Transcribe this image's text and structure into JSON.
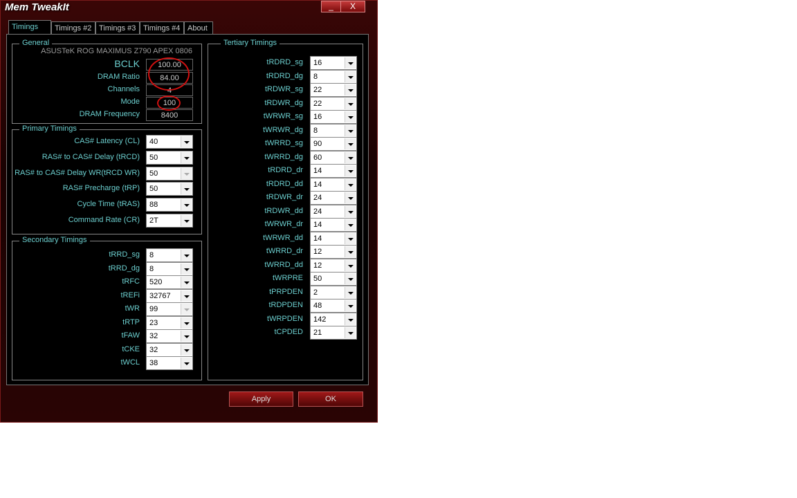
{
  "window": {
    "title": "Mem TweakIt",
    "minimize": "_",
    "close": "X"
  },
  "tabs": [
    "Timings #1",
    "Timings #2",
    "Timings #3",
    "Timings #4",
    "About"
  ],
  "general": {
    "title": "General",
    "board": "ASUSTeK ROG MAXIMUS Z790 APEX 0806",
    "rows": [
      {
        "label": "BCLK",
        "value": "100.00"
      },
      {
        "label": "DRAM Ratio",
        "value": "84.00"
      },
      {
        "label": "Channels",
        "value": "4"
      },
      {
        "label": "Mode",
        "value": "100"
      },
      {
        "label": "DRAM Frequency",
        "value": "8400"
      }
    ]
  },
  "primary": {
    "title": "Primary Timings",
    "rows": [
      {
        "label": "CAS# Latency (CL)",
        "value": "40"
      },
      {
        "label": "RAS# to CAS# Delay (tRCD)",
        "value": "50"
      },
      {
        "label": "RAS# to CAS# Delay WR(tRCD WR)",
        "value": "50",
        "disabled": true
      },
      {
        "label": "RAS# Precharge (tRP)",
        "value": "50"
      },
      {
        "label": "Cycle Time (tRAS)",
        "value": "88"
      },
      {
        "label": "Command Rate (CR)",
        "value": "2T"
      }
    ]
  },
  "secondary": {
    "title": "Secondary Timings",
    "rows": [
      {
        "label": "tRRD_sg",
        "value": "8"
      },
      {
        "label": "tRRD_dg",
        "value": "8"
      },
      {
        "label": "tRFC",
        "value": "520"
      },
      {
        "label": "tREFi",
        "value": "32767"
      },
      {
        "label": "tWR",
        "value": "99",
        "disabled": true
      },
      {
        "label": "tRTP",
        "value": "23"
      },
      {
        "label": "tFAW",
        "value": "32"
      },
      {
        "label": "tCKE",
        "value": "32"
      },
      {
        "label": "tWCL",
        "value": "38"
      }
    ]
  },
  "tertiary": {
    "title": "Tertiary Timings",
    "rows": [
      {
        "label": "tRDRD_sg",
        "value": "16"
      },
      {
        "label": "tRDRD_dg",
        "value": "8"
      },
      {
        "label": "tRDWR_sg",
        "value": "22"
      },
      {
        "label": "tRDWR_dg",
        "value": "22"
      },
      {
        "label": "tWRWR_sg",
        "value": "16"
      },
      {
        "label": "tWRWR_dg",
        "value": "8"
      },
      {
        "label": "tWRRD_sg",
        "value": "90"
      },
      {
        "label": "tWRRD_dg",
        "value": "60"
      },
      {
        "label": "tRDRD_dr",
        "value": "14"
      },
      {
        "label": "tRDRD_dd",
        "value": "14"
      },
      {
        "label": "tRDWR_dr",
        "value": "24"
      },
      {
        "label": "tRDWR_dd",
        "value": "24"
      },
      {
        "label": "tWRWR_dr",
        "value": "14"
      },
      {
        "label": "tWRWR_dd",
        "value": "14"
      },
      {
        "label": "tWRRD_dr",
        "value": "12"
      },
      {
        "label": "tWRRD_dd",
        "value": "12"
      },
      {
        "label": "tWRPRE",
        "value": "50"
      },
      {
        "label": "tPRPDEN",
        "value": "2"
      },
      {
        "label": "tRDPDEN",
        "value": "48"
      },
      {
        "label": "tWRPDEN",
        "value": "142"
      },
      {
        "label": "tCPDED",
        "value": "21"
      }
    ]
  },
  "buttons": {
    "apply": "Apply",
    "ok": "OK"
  },
  "colors": {
    "accent": "#6ccfcf",
    "annotation": "#d01010"
  }
}
